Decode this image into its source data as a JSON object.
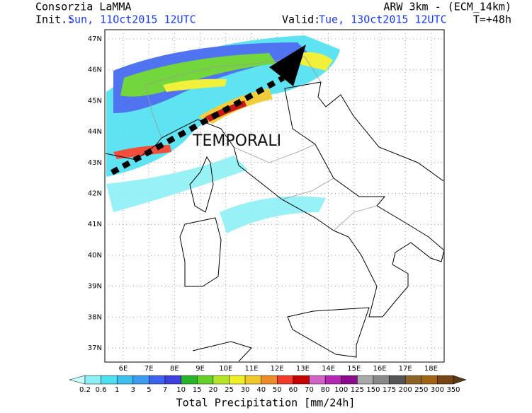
{
  "header": {
    "left_title": "Consorzia LaMMA",
    "init_label": "Init.:",
    "init_value": "Sun, 11Oct2015 12UTC",
    "right_title": "ARW 3km - (ECM_14km)",
    "valid_label": "Valid:",
    "valid_value": "Tue, 13Oct2015 12UTC",
    "lead_time": "T=+48h"
  },
  "map": {
    "lat_labels": [
      "47N",
      "46N",
      "45N",
      "44N",
      "43N",
      "42N",
      "41N",
      "40N",
      "39N",
      "38N",
      "37N"
    ],
    "lon_labels": [
      "6E",
      "7E",
      "8E",
      "9E",
      "10E",
      "11E",
      "12E",
      "13E",
      "14E",
      "15E",
      "16E",
      "17E",
      "18E"
    ],
    "annotation": "TEMPORALI"
  },
  "colorbar": {
    "title": "Total Precipitation [mm/24h]",
    "labels": [
      "0.2",
      "0.6",
      "1",
      "3",
      "5",
      "7",
      "10",
      "15",
      "20",
      "25",
      "30",
      "40",
      "50",
      "60",
      "70",
      "80",
      "100",
      "125",
      "150",
      "175",
      "200",
      "250",
      "300",
      "350"
    ],
    "colors": [
      "#c8ffff",
      "#8cf0f5",
      "#4ce0f0",
      "#3cc0f0",
      "#3c9cf0",
      "#3c64f0",
      "#4040e0",
      "#28b428",
      "#64d228",
      "#b4e628",
      "#f0f028",
      "#f0c828",
      "#f08c28",
      "#f03c28",
      "#c80000",
      "#d264c8",
      "#b428b4",
      "#8c0a8c",
      "#aaaaaa",
      "#888888",
      "#555555",
      "#8c6428",
      "#a06414",
      "#784614",
      "#5a3c14"
    ]
  }
}
